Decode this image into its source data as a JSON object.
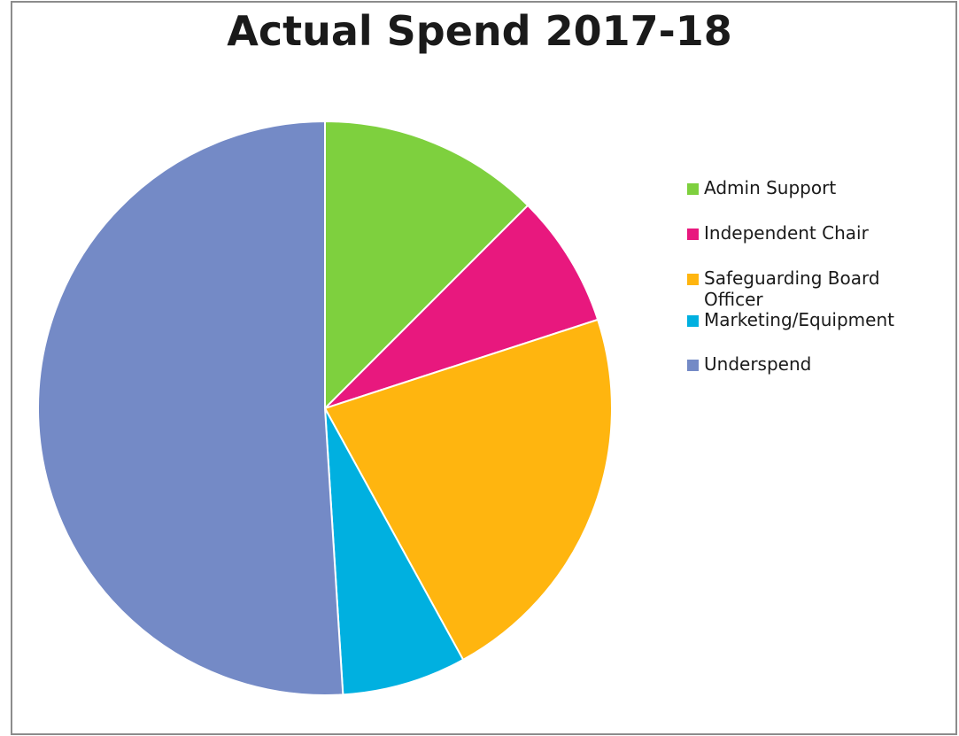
{
  "chart_data": {
    "type": "pie",
    "title": "Actual Spend 2017-18",
    "legend_position": "right",
    "series": [
      {
        "name": "",
        "slices": [
          {
            "label": "Admin Support",
            "value": 12.5,
            "color": "#7ed03e"
          },
          {
            "label": "Independent Chair",
            "value": 7.5,
            "color": "#e8187e"
          },
          {
            "label": "Safeguarding Board Officer",
            "value": 22.0,
            "color": "#ffb50f"
          },
          {
            "label": "Marketing/Equipment",
            "value": 7.0,
            "color": "#00b0e0"
          },
          {
            "label": "Underspend",
            "value": 51.0,
            "color": "#748ac6"
          }
        ]
      }
    ]
  }
}
